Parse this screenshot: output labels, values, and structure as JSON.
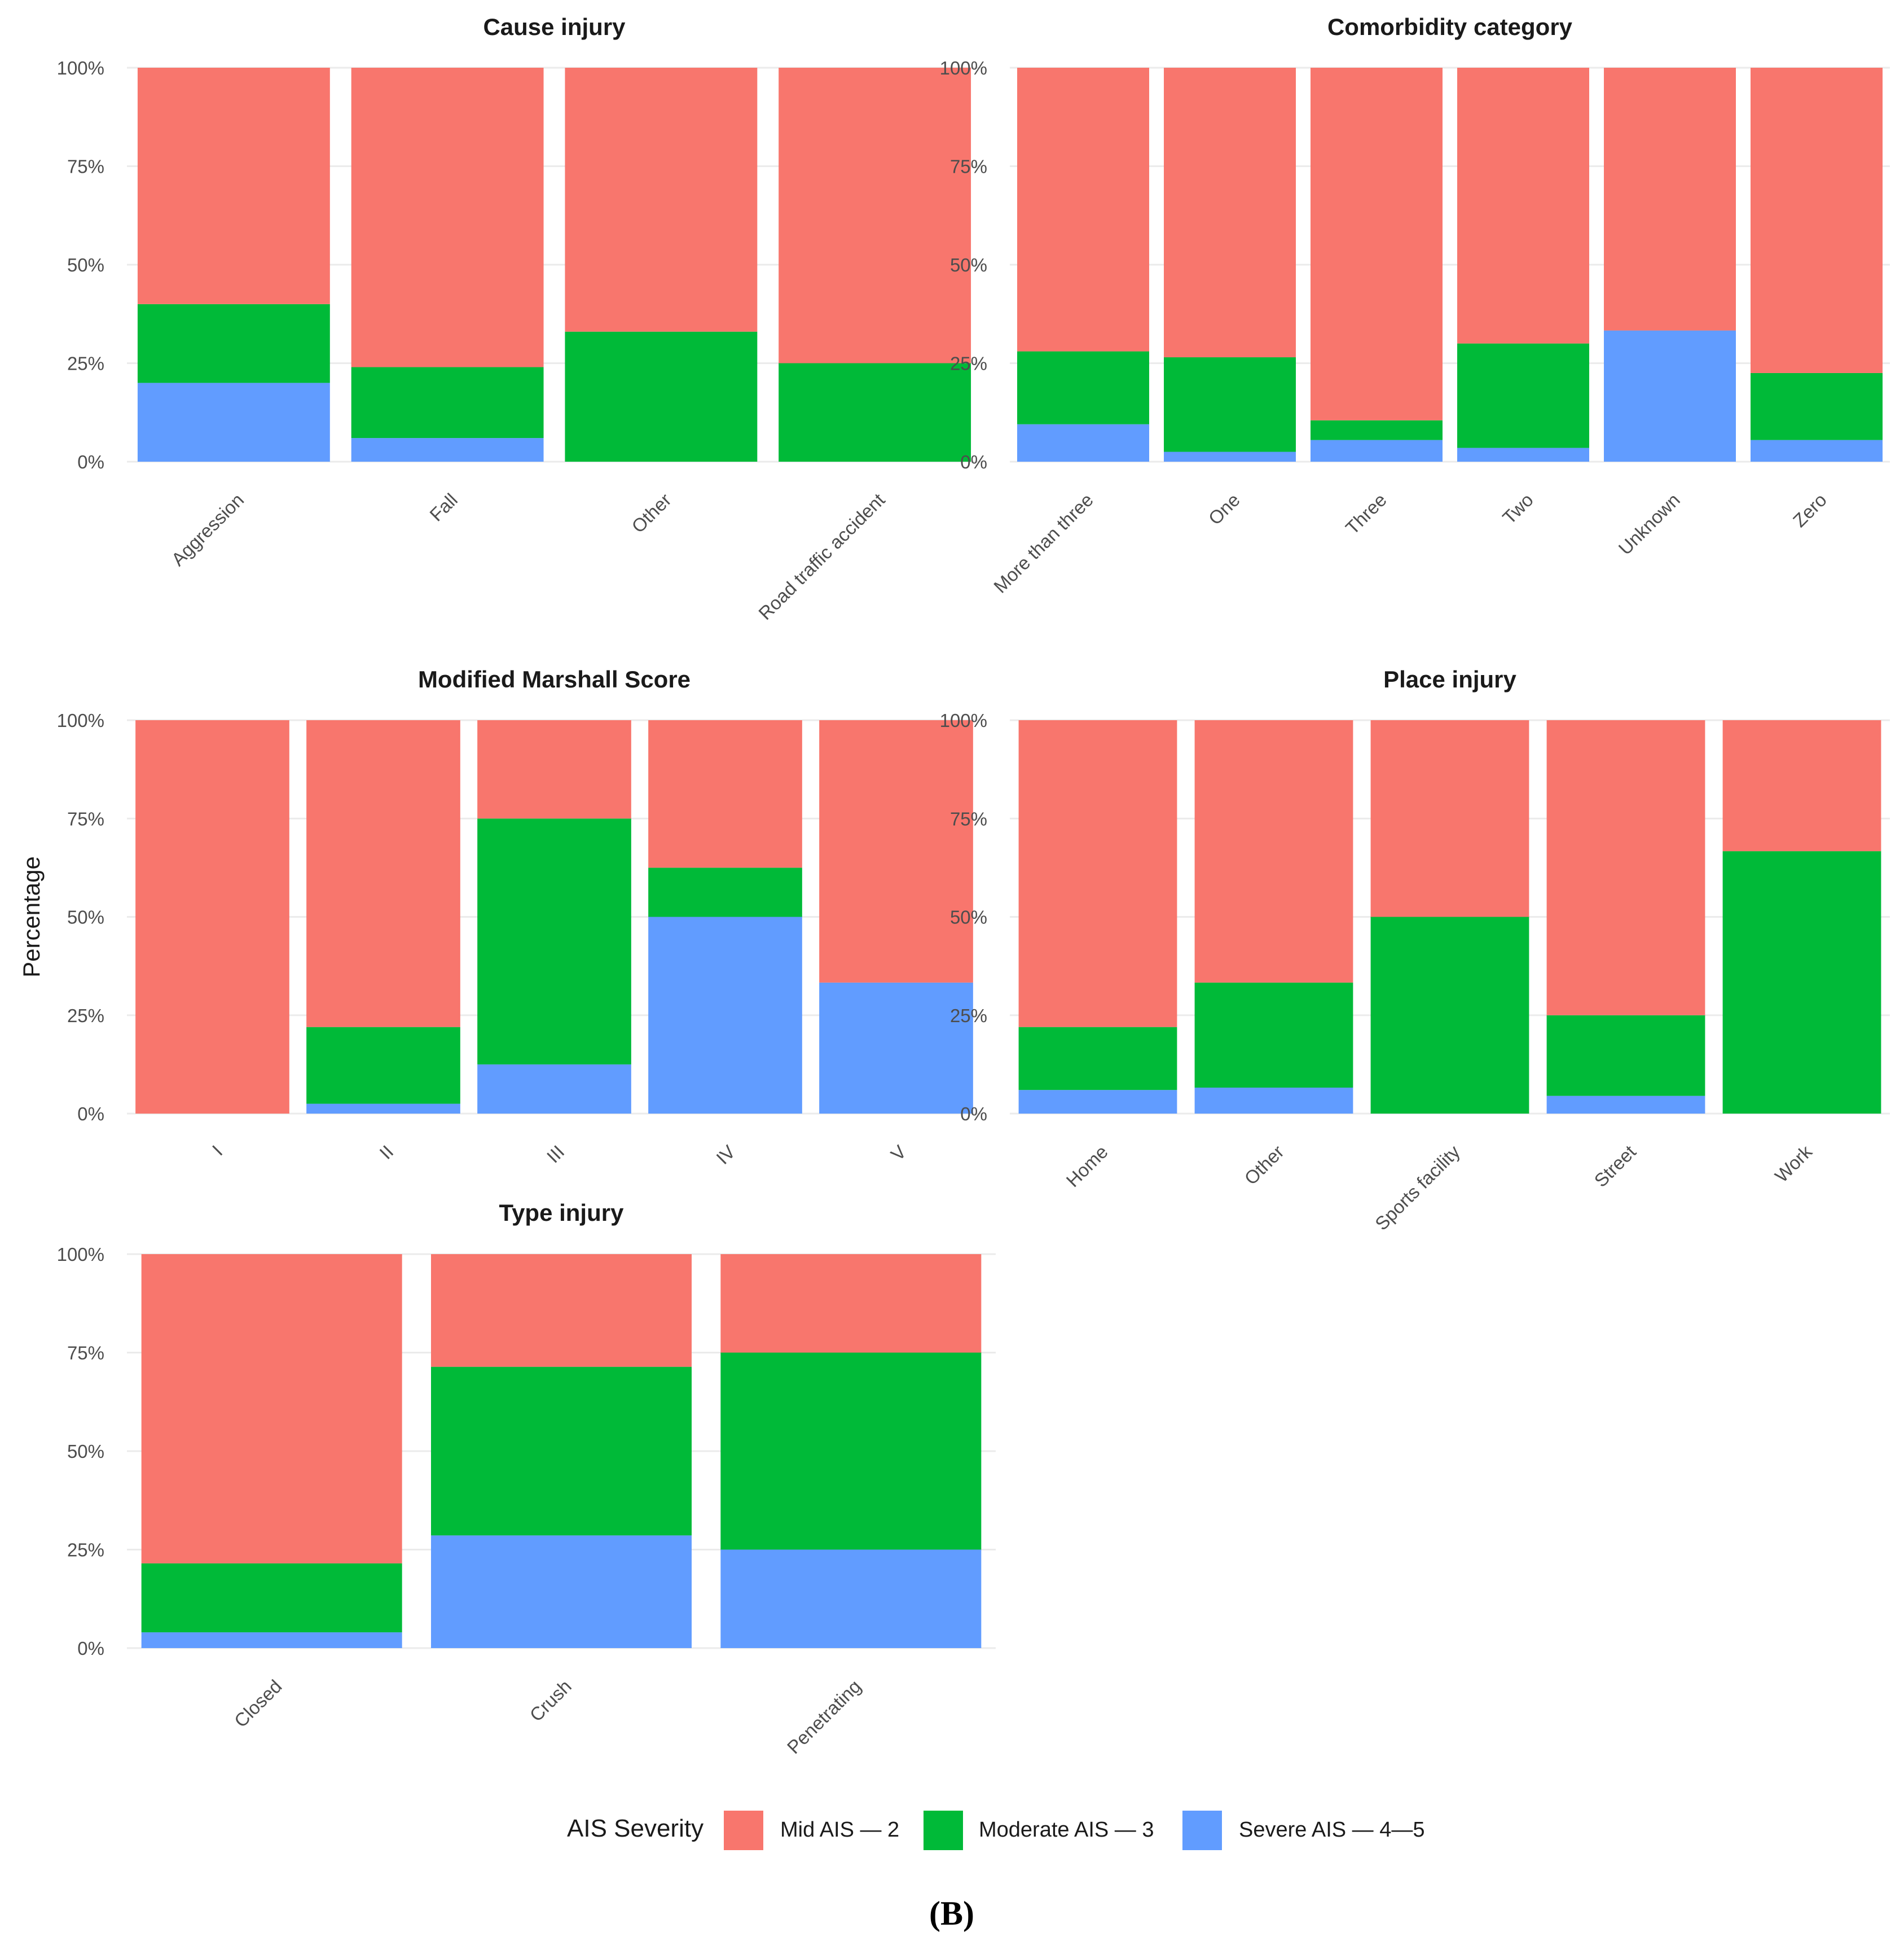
{
  "chart_data": [
    {
      "type": "bar",
      "stacked": "percent",
      "title": "Cause injury",
      "categories": [
        "Aggression",
        "Fall",
        "Other",
        "Road traffic accident"
      ],
      "series": [
        {
          "name": "Mid AIS — 2",
          "values": [
            60,
            76,
            67,
            75
          ]
        },
        {
          "name": "Moderate AIS — 3",
          "values": [
            20,
            18,
            33,
            25
          ]
        },
        {
          "name": "Severe AIS — 4—5",
          "values": [
            20,
            6,
            0,
            0
          ]
        }
      ],
      "ylim": [
        0,
        100
      ],
      "yticks": [
        "0%",
        "25%",
        "50%",
        "75%",
        "100%"
      ]
    },
    {
      "type": "bar",
      "stacked": "percent",
      "title": "Comorbidity category",
      "categories": [
        "More than three",
        "One",
        "Three",
        "Two",
        "Unknown",
        "Zero"
      ],
      "series": [
        {
          "name": "Mid AIS — 2",
          "values": [
            72,
            73.5,
            89.5,
            70,
            66.7,
            77.5
          ]
        },
        {
          "name": "Moderate AIS — 3",
          "values": [
            18.5,
            24,
            5,
            26.5,
            0,
            17
          ]
        },
        {
          "name": "Severe AIS — 4—5",
          "values": [
            9.5,
            2.5,
            5.5,
            3.5,
            33.3,
            5.5
          ]
        }
      ],
      "ylim": [
        0,
        100
      ],
      "yticks": [
        "0%",
        "25%",
        "50%",
        "75%",
        "100%"
      ]
    },
    {
      "type": "bar",
      "stacked": "percent",
      "title": "Modified Marshall Score",
      "categories": [
        "I",
        "II",
        "III",
        "IV",
        "V"
      ],
      "series": [
        {
          "name": "Mid AIS — 2",
          "values": [
            100,
            78,
            25,
            37.5,
            66.7
          ]
        },
        {
          "name": "Moderate AIS — 3",
          "values": [
            0,
            19.5,
            62.5,
            12.5,
            0
          ]
        },
        {
          "name": "Severe AIS — 4—5",
          "values": [
            0,
            2.5,
            12.5,
            50,
            33.3
          ]
        }
      ],
      "ylabel": "Percentage",
      "ylim": [
        0,
        100
      ],
      "yticks": [
        "0%",
        "25%",
        "50%",
        "75%",
        "100%"
      ]
    },
    {
      "type": "bar",
      "stacked": "percent",
      "title": "Place injury",
      "categories": [
        "Home",
        "Other",
        "Sports facility",
        "Street",
        "Work"
      ],
      "series": [
        {
          "name": "Mid AIS — 2",
          "values": [
            78,
            66.7,
            50,
            75,
            33.3
          ]
        },
        {
          "name": "Moderate AIS — 3",
          "values": [
            16,
            26.7,
            50,
            20.5,
            66.7
          ]
        },
        {
          "name": "Severe AIS — 4—5",
          "values": [
            6,
            6.6,
            0,
            4.5,
            0
          ]
        }
      ],
      "ylim": [
        0,
        100
      ],
      "yticks": [
        "0%",
        "25%",
        "50%",
        "75%",
        "100%"
      ]
    },
    {
      "type": "bar",
      "stacked": "percent",
      "title": "Type injury",
      "categories": [
        "Closed",
        "Crush",
        "Penetrating"
      ],
      "series": [
        {
          "name": "Mid AIS — 2",
          "values": [
            78.5,
            28.6,
            25
          ]
        },
        {
          "name": "Moderate AIS — 3",
          "values": [
            17.5,
            42.8,
            50
          ]
        },
        {
          "name": "Severe AIS — 4—5",
          "values": [
            4,
            28.6,
            25
          ]
        }
      ],
      "ylim": [
        0,
        100
      ],
      "yticks": [
        "0%",
        "25%",
        "50%",
        "75%",
        "100%"
      ]
    }
  ],
  "legend": {
    "title": "AIS Severity",
    "entries": [
      {
        "label": "Mid AIS — 2",
        "color": "#F8766D"
      },
      {
        "label": "Moderate AIS — 3",
        "color": "#00BA38"
      },
      {
        "label": "Severe AIS — 4—5",
        "color": "#619CFF"
      }
    ]
  },
  "caption": "(B)"
}
